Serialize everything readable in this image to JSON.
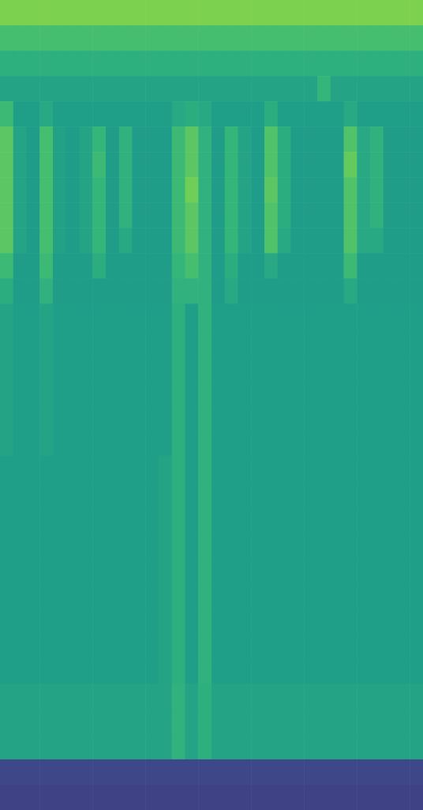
{
  "chart_data": {
    "type": "heatmap",
    "tick_labels": false,
    "zlim": [
      0,
      100
    ],
    "cells": [
      [
        80,
        80,
        80,
        80,
        80,
        80,
        80,
        80,
        80,
        80,
        80,
        80,
        80,
        80,
        80,
        80,
        80,
        80,
        80,
        80,
        80,
        80,
        80,
        80,
        80,
        80,
        80,
        80,
        80,
        80,
        80,
        80
      ],
      [
        70,
        70,
        70,
        70,
        70,
        70,
        70,
        70,
        70,
        70,
        70,
        70,
        70,
        70,
        70,
        70,
        70,
        70,
        70,
        70,
        70,
        70,
        70,
        70,
        70,
        70,
        70,
        70,
        70,
        70,
        70,
        70
      ],
      [
        63,
        63,
        63,
        63,
        63,
        63,
        63,
        63,
        63,
        63,
        63,
        63,
        63,
        63,
        63,
        63,
        63,
        63,
        63,
        63,
        63,
        63,
        63,
        63,
        63,
        63,
        63,
        63,
        63,
        63,
        63,
        63
      ],
      [
        58,
        58,
        58,
        58,
        58,
        58,
        58,
        58,
        58,
        58,
        58,
        58,
        58,
        58,
        58,
        58,
        58,
        58,
        58,
        58,
        58,
        58,
        58,
        58,
        66,
        58,
        58,
        58,
        58,
        58,
        58,
        58
      ],
      [
        68,
        56,
        56,
        60,
        56,
        56,
        56,
        56,
        56,
        56,
        56,
        56,
        56,
        60,
        62,
        60,
        56,
        56,
        56,
        56,
        62,
        56,
        56,
        56,
        56,
        56,
        60,
        56,
        56,
        56,
        56,
        56
      ],
      [
        74,
        58,
        55,
        70,
        57,
        55,
        58,
        66,
        55,
        64,
        55,
        55,
        55,
        68,
        74,
        64,
        55,
        66,
        58,
        55,
        72,
        62,
        55,
        55,
        55,
        55,
        72,
        60,
        64,
        55,
        55,
        55
      ],
      [
        74,
        58,
        55,
        70,
        57,
        55,
        58,
        68,
        55,
        64,
        55,
        55,
        55,
        68,
        74,
        64,
        55,
        66,
        58,
        55,
        72,
        62,
        55,
        55,
        55,
        55,
        76,
        60,
        64,
        55,
        55,
        55
      ],
      [
        74,
        58,
        55,
        70,
        57,
        55,
        58,
        66,
        55,
        64,
        55,
        55,
        55,
        68,
        78,
        64,
        55,
        66,
        58,
        55,
        74,
        62,
        55,
        55,
        55,
        55,
        72,
        60,
        64,
        55,
        55,
        55
      ],
      [
        74,
        58,
        55,
        70,
        57,
        55,
        58,
        66,
        55,
        64,
        55,
        55,
        55,
        68,
        74,
        64,
        55,
        66,
        58,
        55,
        72,
        62,
        55,
        55,
        55,
        55,
        72,
        60,
        64,
        55,
        55,
        55
      ],
      [
        74,
        58,
        55,
        70,
        57,
        55,
        58,
        66,
        55,
        60,
        55,
        55,
        55,
        68,
        74,
        64,
        55,
        66,
        58,
        55,
        72,
        60,
        55,
        55,
        55,
        55,
        72,
        60,
        60,
        55,
        55,
        55
      ],
      [
        68,
        55,
        55,
        68,
        55,
        55,
        55,
        62,
        55,
        55,
        55,
        55,
        55,
        66,
        70,
        64,
        55,
        62,
        55,
        55,
        60,
        55,
        55,
        55,
        55,
        55,
        68,
        55,
        55,
        55,
        55,
        55
      ],
      [
        62,
        55,
        55,
        64,
        55,
        55,
        55,
        55,
        55,
        55,
        55,
        55,
        55,
        64,
        64,
        64,
        55,
        60,
        55,
        55,
        55,
        55,
        55,
        55,
        55,
        55,
        60,
        55,
        55,
        55,
        55,
        55
      ],
      [
        58,
        56,
        56,
        58,
        56,
        56,
        56,
        56,
        56,
        56,
        56,
        56,
        56,
        63,
        56,
        64,
        56,
        56,
        56,
        56,
        56,
        56,
        56,
        56,
        56,
        56,
        56,
        56,
        56,
        56,
        56,
        56
      ],
      [
        58,
        56,
        56,
        58,
        56,
        56,
        56,
        56,
        56,
        56,
        56,
        56,
        56,
        63,
        56,
        64,
        56,
        56,
        56,
        56,
        56,
        56,
        56,
        56,
        56,
        56,
        56,
        56,
        56,
        56,
        56,
        56
      ],
      [
        58,
        56,
        56,
        58,
        56,
        56,
        56,
        56,
        56,
        56,
        56,
        56,
        56,
        63,
        56,
        64,
        56,
        56,
        56,
        56,
        56,
        56,
        56,
        56,
        56,
        56,
        56,
        56,
        56,
        56,
        56,
        56
      ],
      [
        58,
        56,
        56,
        58,
        56,
        56,
        56,
        56,
        56,
        56,
        56,
        56,
        56,
        63,
        56,
        64,
        56,
        56,
        56,
        56,
        56,
        56,
        56,
        56,
        56,
        56,
        56,
        56,
        56,
        56,
        56,
        56
      ],
      [
        58,
        56,
        56,
        58,
        56,
        56,
        56,
        56,
        56,
        56,
        56,
        56,
        56,
        63,
        56,
        64,
        56,
        56,
        56,
        56,
        56,
        56,
        56,
        56,
        56,
        56,
        56,
        56,
        56,
        56,
        56,
        56
      ],
      [
        58,
        56,
        56,
        58,
        56,
        56,
        56,
        56,
        56,
        56,
        56,
        56,
        56,
        63,
        56,
        64,
        56,
        56,
        56,
        56,
        56,
        56,
        56,
        56,
        56,
        56,
        56,
        56,
        56,
        56,
        56,
        56
      ],
      [
        56,
        56,
        56,
        56,
        56,
        56,
        56,
        56,
        56,
        56,
        56,
        56,
        58,
        63,
        56,
        64,
        56,
        56,
        56,
        56,
        56,
        56,
        56,
        56,
        56,
        56,
        56,
        56,
        56,
        56,
        56,
        56
      ],
      [
        56,
        56,
        56,
        56,
        56,
        56,
        56,
        56,
        56,
        56,
        56,
        56,
        58,
        63,
        56,
        64,
        56,
        56,
        56,
        56,
        56,
        56,
        56,
        56,
        56,
        56,
        56,
        56,
        56,
        56,
        56,
        56
      ],
      [
        56,
        56,
        56,
        56,
        56,
        56,
        56,
        56,
        56,
        56,
        56,
        56,
        58,
        63,
        56,
        64,
        56,
        56,
        56,
        56,
        56,
        56,
        56,
        56,
        56,
        56,
        56,
        56,
        56,
        56,
        56,
        56
      ],
      [
        56,
        56,
        56,
        56,
        56,
        56,
        56,
        56,
        56,
        56,
        56,
        56,
        58,
        63,
        56,
        64,
        56,
        56,
        56,
        56,
        56,
        56,
        56,
        56,
        56,
        56,
        56,
        56,
        56,
        56,
        56,
        56
      ],
      [
        56,
        56,
        56,
        56,
        56,
        56,
        56,
        56,
        56,
        56,
        56,
        56,
        58,
        63,
        56,
        64,
        56,
        56,
        56,
        56,
        56,
        56,
        56,
        56,
        56,
        56,
        56,
        56,
        56,
        56,
        56,
        56
      ],
      [
        56,
        56,
        56,
        56,
        56,
        56,
        56,
        56,
        56,
        56,
        56,
        56,
        58,
        63,
        56,
        64,
        56,
        56,
        56,
        56,
        56,
        56,
        56,
        56,
        56,
        56,
        56,
        56,
        56,
        56,
        56,
        56
      ],
      [
        56,
        56,
        56,
        56,
        56,
        56,
        56,
        56,
        56,
        56,
        56,
        56,
        58,
        63,
        56,
        64,
        56,
        56,
        56,
        56,
        56,
        56,
        56,
        56,
        56,
        56,
        56,
        56,
        56,
        56,
        56,
        56
      ],
      [
        56,
        56,
        56,
        56,
        56,
        56,
        56,
        56,
        56,
        56,
        56,
        56,
        58,
        63,
        56,
        64,
        56,
        56,
        56,
        56,
        56,
        56,
        56,
        56,
        56,
        56,
        56,
        56,
        56,
        56,
        56,
        56
      ],
      [
        56,
        56,
        56,
        56,
        56,
        56,
        56,
        56,
        56,
        56,
        56,
        56,
        58,
        63,
        56,
        64,
        56,
        56,
        56,
        56,
        56,
        56,
        56,
        56,
        56,
        56,
        56,
        56,
        56,
        56,
        56,
        56
      ],
      [
        58,
        58,
        58,
        58,
        58,
        58,
        58,
        58,
        58,
        58,
        58,
        58,
        58,
        64,
        58,
        63,
        58,
        58,
        58,
        58,
        58,
        58,
        58,
        58,
        58,
        58,
        58,
        58,
        58,
        58,
        58,
        58
      ],
      [
        58,
        58,
        58,
        58,
        58,
        58,
        58,
        58,
        58,
        58,
        58,
        58,
        58,
        64,
        58,
        63,
        58,
        58,
        58,
        58,
        58,
        58,
        58,
        58,
        58,
        58,
        58,
        58,
        58,
        58,
        58,
        58
      ],
      [
        58,
        58,
        58,
        58,
        58,
        58,
        58,
        58,
        58,
        58,
        58,
        58,
        58,
        64,
        58,
        63,
        58,
        58,
        58,
        58,
        58,
        58,
        58,
        58,
        58,
        58,
        58,
        58,
        58,
        58,
        58,
        58
      ],
      [
        22,
        22,
        22,
        22,
        22,
        22,
        22,
        22,
        22,
        22,
        22,
        22,
        22,
        22,
        22,
        22,
        22,
        22,
        22,
        22,
        22,
        22,
        22,
        22,
        22,
        22,
        22,
        22,
        22,
        22,
        22,
        22
      ],
      [
        20,
        20,
        20,
        20,
        20,
        20,
        20,
        20,
        20,
        20,
        20,
        20,
        20,
        20,
        20,
        20,
        20,
        20,
        20,
        20,
        20,
        20,
        20,
        20,
        20,
        20,
        20,
        20,
        20,
        20,
        20,
        20
      ]
    ]
  }
}
